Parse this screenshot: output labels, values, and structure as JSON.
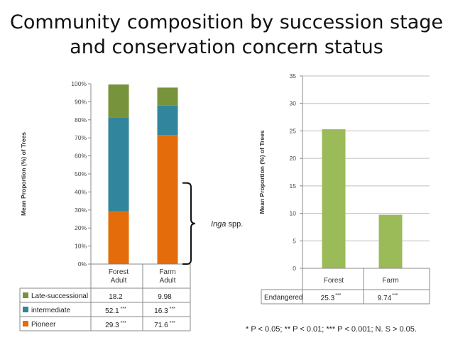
{
  "title": {
    "line1": "Community composition by succession stage",
    "line2": "and conservation concern status"
  },
  "colors": {
    "late_successional": "#77933c",
    "intermediate": "#31859c",
    "pioneer": "#e46c0a",
    "endangered": "#9bbb59",
    "axis": "#888888",
    "grid": "#bfbfbf"
  },
  "footnote": "* P < 0.05; ** P < 0.01; *** P < 0.001; N. S > 0.05.",
  "chart_data": [
    {
      "type": "bar",
      "stacked": true,
      "percent": true,
      "ylabel": "Mean Proportion (%) of Trees",
      "ylim": [
        0,
        100
      ],
      "yticks": [
        "0%",
        "10%",
        "20%",
        "30%",
        "40%",
        "50%",
        "60%",
        "70%",
        "80%",
        "90%",
        "100%"
      ],
      "categories": [
        {
          "line1": "Forest",
          "line2": "Adult"
        },
        {
          "line1": "Farm",
          "line2": "Adult"
        }
      ],
      "series": [
        {
          "name": "Pioneer",
          "color_key": "pioneer",
          "values": [
            29.3,
            71.6
          ],
          "labels": [
            "29.3",
            "71.6"
          ],
          "sig": [
            "***",
            "***"
          ]
        },
        {
          "name": "intermediate",
          "color_key": "intermediate",
          "values": [
            52.1,
            16.3
          ],
          "labels": [
            "52.1",
            "16.3"
          ],
          "sig": [
            "***",
            "***"
          ]
        },
        {
          "name": "Late-successional",
          "color_key": "late_successional",
          "values": [
            18.2,
            9.98
          ],
          "labels": [
            "18.2",
            "9.98"
          ],
          "sig": [
            "",
            ""
          ]
        }
      ],
      "annotation": {
        "italic": "Inga",
        "text": " spp.",
        "bracket_from": 0,
        "bracket_to": 45
      },
      "legend_placement": "data-table-below"
    },
    {
      "type": "bar",
      "ylabel": "Mean Proportion (%) of Trees",
      "ylim": [
        0,
        35
      ],
      "yticks": [
        "0",
        "5",
        "10",
        "15",
        "20",
        "25",
        "30",
        "35"
      ],
      "categories": [
        "Forest",
        "Farm"
      ],
      "series": [
        {
          "name": "Endangered",
          "color_key": "endangered",
          "values": [
            25.3,
            9.74
          ],
          "labels": [
            "25.3",
            "9.74"
          ],
          "sig": [
            "***",
            "***"
          ]
        }
      ],
      "grid": true,
      "legend_placement": "data-table-below"
    }
  ]
}
